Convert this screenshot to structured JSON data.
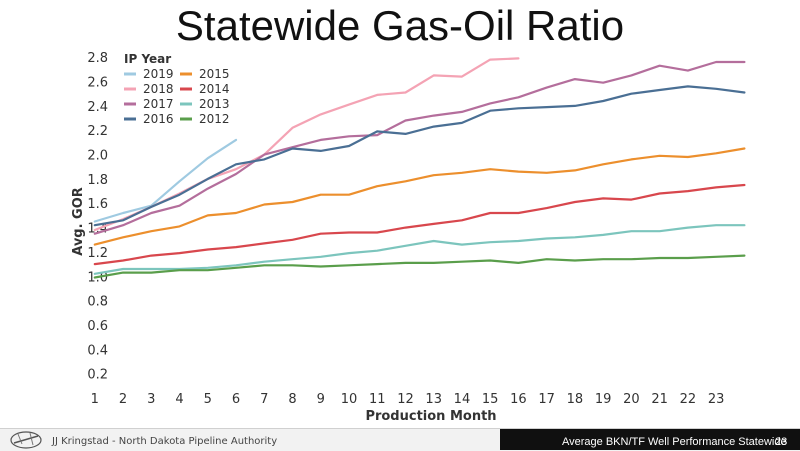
{
  "slide": {
    "title": "Statewide Gas-Oil Ratio",
    "footer_author": "JJ Kringstad - North Dakota Pipeline Authority",
    "footer_caption": "Average BKN/TF Well Performance Statewide",
    "page_number": "23"
  },
  "chart_data": {
    "type": "line",
    "title": "",
    "xlabel": "Production Month",
    "ylabel": "Avg. GOR",
    "xlim": [
      0.9,
      24.2
    ],
    "ylim": [
      0,
      2.9
    ],
    "x_ticks": [
      1,
      2,
      3,
      4,
      5,
      6,
      7,
      8,
      9,
      10,
      11,
      12,
      13,
      14,
      15,
      16,
      17,
      18,
      19,
      20,
      21,
      22,
      23
    ],
    "y_ticks": [
      0.2,
      0.4,
      0.6,
      0.8,
      1.0,
      1.2,
      1.4,
      1.6,
      1.8,
      2.0,
      2.2,
      2.4,
      2.6,
      2.8
    ],
    "y_tick_labels": [
      "0.2",
      "0.4",
      "0.6",
      "0.8",
      "1.0",
      "1.2",
      "1.4",
      "1.6",
      "1.8",
      "2.0",
      "2.2",
      "2.4",
      "2.6",
      "2.8"
    ],
    "grid": false,
    "legend": {
      "title": "IP Year",
      "placement": "top-left",
      "columns": 2
    },
    "series": [
      {
        "name": "2019",
        "color": "#9fcae1",
        "x": [
          1,
          2,
          3,
          4,
          5,
          6
        ],
        "values": [
          1.45,
          1.52,
          1.58,
          1.78,
          1.97,
          2.12
        ]
      },
      {
        "name": "2018",
        "color": "#f4a3b4",
        "x": [
          1,
          2,
          3,
          4,
          5,
          6,
          7,
          8,
          9,
          10,
          11,
          12,
          13,
          14,
          15,
          16
        ],
        "values": [
          1.38,
          1.47,
          1.57,
          1.68,
          1.8,
          1.88,
          2.0,
          2.22,
          2.33,
          2.41,
          2.49,
          2.51,
          2.65,
          2.64,
          2.78,
          2.79
        ]
      },
      {
        "name": "2017",
        "color": "#b46e9c",
        "x": [
          1,
          2,
          3,
          4,
          5,
          6,
          7,
          8,
          9,
          10,
          11,
          12,
          13,
          14,
          15,
          16,
          17,
          18,
          19,
          20,
          21,
          22,
          23,
          24
        ],
        "values": [
          1.35,
          1.42,
          1.52,
          1.58,
          1.72,
          1.84,
          2.0,
          2.06,
          2.12,
          2.15,
          2.16,
          2.28,
          2.32,
          2.35,
          2.42,
          2.47,
          2.55,
          2.62,
          2.59,
          2.65,
          2.73,
          2.69,
          2.76,
          2.76
        ]
      },
      {
        "name": "2016",
        "color": "#4a6f94",
        "x": [
          1,
          2,
          3,
          4,
          5,
          6,
          7,
          8,
          9,
          10,
          11,
          12,
          13,
          14,
          15,
          16,
          17,
          18,
          19,
          20,
          21,
          22,
          23,
          24
        ],
        "values": [
          1.42,
          1.46,
          1.57,
          1.67,
          1.8,
          1.92,
          1.96,
          2.05,
          2.03,
          2.07,
          2.19,
          2.17,
          2.23,
          2.26,
          2.36,
          2.38,
          2.39,
          2.4,
          2.44,
          2.5,
          2.53,
          2.56,
          2.54,
          2.51
        ]
      },
      {
        "name": "2015",
        "color": "#ec8f2d",
        "x": [
          1,
          2,
          3,
          4,
          5,
          6,
          7,
          8,
          9,
          10,
          11,
          12,
          13,
          14,
          15,
          16,
          17,
          18,
          19,
          20,
          21,
          22,
          23,
          24
        ],
        "values": [
          1.26,
          1.32,
          1.37,
          1.41,
          1.5,
          1.52,
          1.59,
          1.61,
          1.67,
          1.67,
          1.74,
          1.78,
          1.83,
          1.85,
          1.88,
          1.86,
          1.85,
          1.87,
          1.92,
          1.96,
          1.99,
          1.98,
          2.01,
          2.05
        ]
      },
      {
        "name": "2014",
        "color": "#d8474d",
        "x": [
          1,
          2,
          3,
          4,
          5,
          6,
          7,
          8,
          9,
          10,
          11,
          12,
          13,
          14,
          15,
          16,
          17,
          18,
          19,
          20,
          21,
          22,
          23,
          24
        ],
        "values": [
          1.1,
          1.13,
          1.17,
          1.19,
          1.22,
          1.24,
          1.27,
          1.3,
          1.35,
          1.36,
          1.36,
          1.4,
          1.43,
          1.46,
          1.52,
          1.52,
          1.56,
          1.61,
          1.64,
          1.63,
          1.68,
          1.7,
          1.73,
          1.75
        ]
      },
      {
        "name": "2013",
        "color": "#7cc5bd",
        "x": [
          1,
          2,
          3,
          4,
          5,
          6,
          7,
          8,
          9,
          10,
          11,
          12,
          13,
          14,
          15,
          16,
          17,
          18,
          19,
          20,
          21,
          22,
          23,
          24
        ],
        "values": [
          1.02,
          1.06,
          1.06,
          1.06,
          1.07,
          1.09,
          1.12,
          1.14,
          1.16,
          1.19,
          1.21,
          1.25,
          1.29,
          1.26,
          1.28,
          1.29,
          1.31,
          1.32,
          1.34,
          1.37,
          1.37,
          1.4,
          1.42,
          1.42
        ]
      },
      {
        "name": "2012",
        "color": "#5a9e4b",
        "x": [
          1,
          2,
          3,
          4,
          5,
          6,
          7,
          8,
          9,
          10,
          11,
          12,
          13,
          14,
          15,
          16,
          17,
          18,
          19,
          20,
          21,
          22,
          23,
          24
        ],
        "values": [
          0.99,
          1.03,
          1.03,
          1.05,
          1.05,
          1.07,
          1.09,
          1.09,
          1.08,
          1.09,
          1.1,
          1.11,
          1.11,
          1.12,
          1.13,
          1.11,
          1.14,
          1.13,
          1.14,
          1.14,
          1.15,
          1.15,
          1.16,
          1.17
        ]
      }
    ]
  }
}
